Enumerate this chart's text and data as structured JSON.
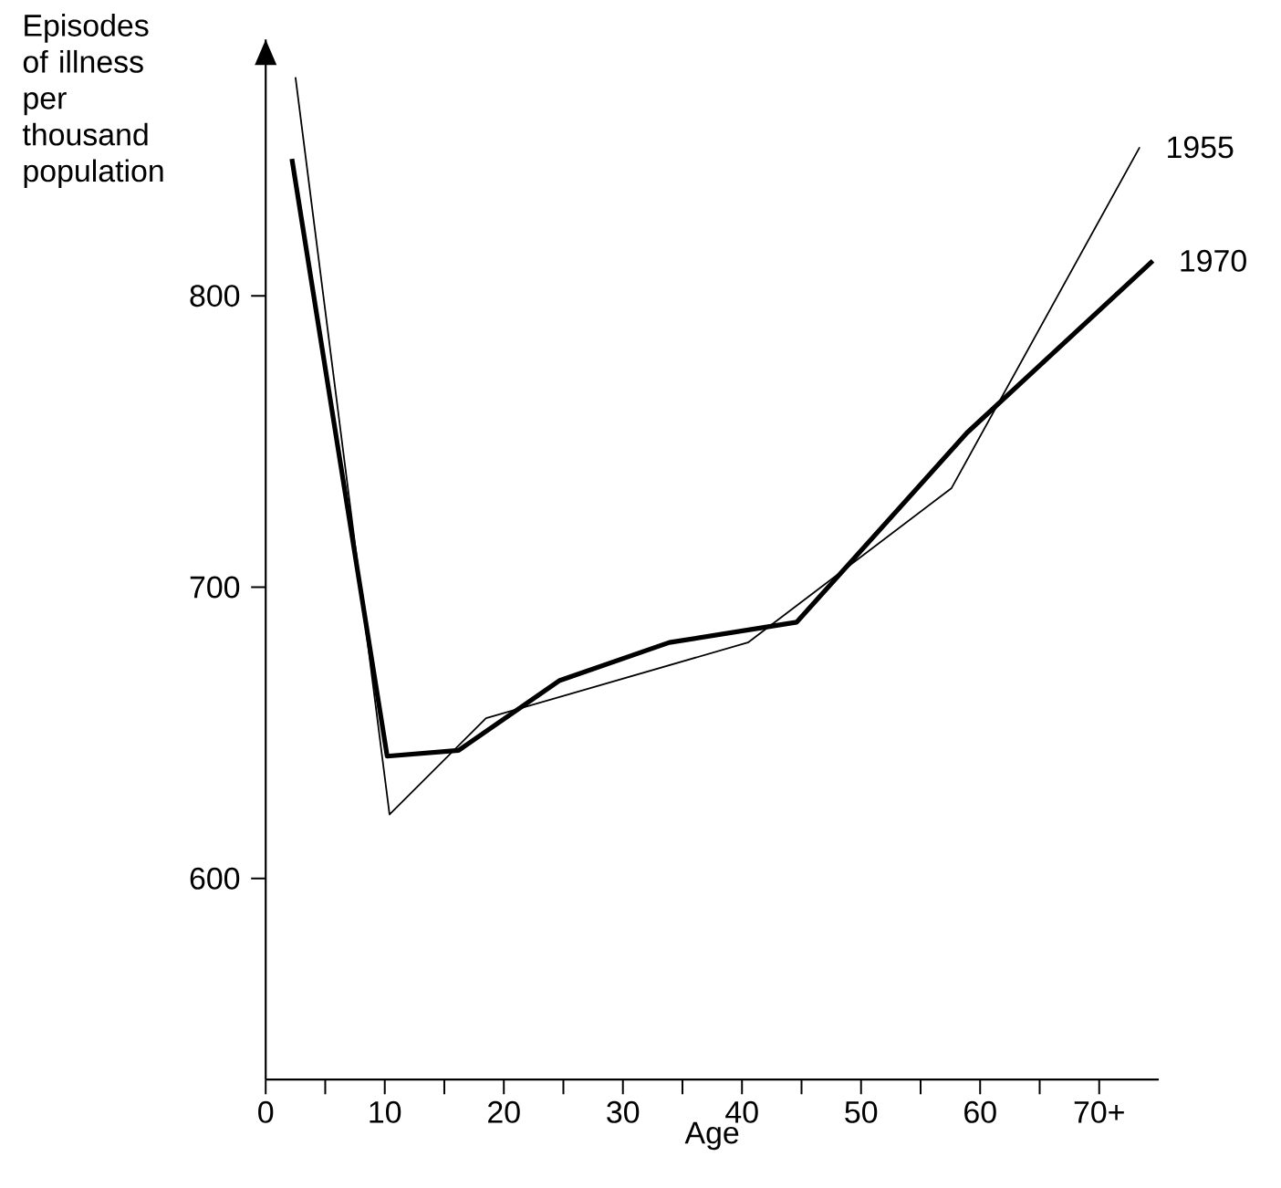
{
  "chart_data": {
    "type": "line",
    "xlabel": "Age",
    "ylabel": "Episodes of illness per thousand population",
    "xlim": [
      0,
      75
    ],
    "ylim": [
      531,
      888
    ],
    "xticks": [
      0,
      {
        "value": 5,
        "label": null
      },
      10,
      {
        "value": 15,
        "label": null
      },
      20,
      {
        "value": 25,
        "label": null
      },
      30,
      {
        "value": 35,
        "label": null
      },
      40,
      {
        "value": 45,
        "label": null
      },
      50,
      {
        "value": 55,
        "label": null
      },
      60,
      {
        "value": 65,
        "label": null
      },
      {
        "value": 70,
        "label": "70+"
      }
    ],
    "yticks": [
      600,
      700,
      800
    ],
    "marker": "none",
    "line_style": "solid",
    "grid": false,
    "series": [
      {
        "name": "1955",
        "color": "#000000",
        "x": [
          2.5,
          10.4,
          18.5,
          40.5,
          57.6,
          73.4
        ],
        "values": [
          875,
          622,
          655,
          681,
          734,
          851
        ]
      },
      {
        "name": "1970",
        "color": "#000000",
        "x": [
          2.2,
          10.2,
          16.2,
          24.7,
          33.9,
          44.6,
          58.9,
          74.5
        ],
        "values": [
          847,
          642,
          644,
          668,
          681,
          688,
          753,
          812
        ]
      }
    ]
  }
}
